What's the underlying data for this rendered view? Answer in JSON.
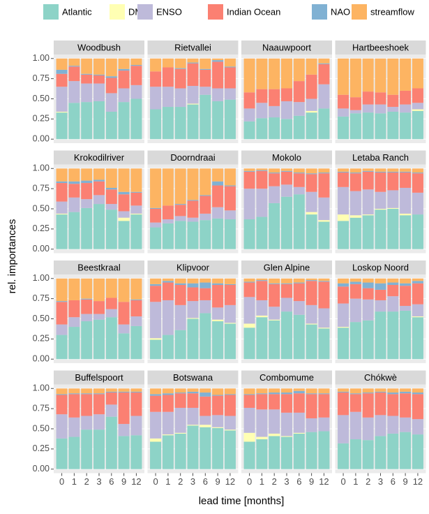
{
  "chart_data": {
    "type": "stacked-bar-facets",
    "xlabel": "lead time [months]",
    "ylabel": "rel. importances",
    "categories": [
      0,
      1,
      2,
      3,
      6,
      9,
      12
    ],
    "ylim": [
      -0.05,
      1.05
    ],
    "yticks": [
      {
        "value": 0,
        "label": "0.00"
      },
      {
        "value": 0.25,
        "label": "0.25"
      },
      {
        "value": 0.5,
        "label": "0.50"
      },
      {
        "value": 0.75,
        "label": "0.75"
      },
      {
        "value": 1,
        "label": "1.00"
      }
    ],
    "grid": true,
    "legend": "top",
    "facets": [
      "Woodbush",
      "Rietvallei",
      "Naauwpoort",
      "Hartbeeshoek",
      "Krokodilriver",
      "Doorndraai",
      "Mokolo",
      "Letaba Ranch",
      "Beestkraal",
      "Klipvoor",
      "Glen Alpine",
      "Loskop Noord",
      "Buffelspoort",
      "Botswana",
      "Combomume",
      "Chókwè"
    ],
    "series": [
      {
        "name": "Atlantic",
        "color": "#8dd3c7",
        "values": [
          [
            0.33,
            0.45,
            0.46,
            0.47,
            0.34,
            0.46,
            0.5
          ],
          [
            0.37,
            0.4,
            0.4,
            0.43,
            0.55,
            0.47,
            0.49
          ],
          [
            0.22,
            0.26,
            0.27,
            0.25,
            0.29,
            0.33,
            0.38
          ],
          [
            0.28,
            0.32,
            0.33,
            0.32,
            0.34,
            0.33,
            0.35
          ],
          [
            0.43,
            0.46,
            0.51,
            0.56,
            0.49,
            0.35,
            0.43
          ],
          [
            0.27,
            0.32,
            0.35,
            0.34,
            0.36,
            0.38,
            0.37
          ],
          [
            0.37,
            0.4,
            0.57,
            0.65,
            0.68,
            0.43,
            0.34
          ],
          [
            0.35,
            0.39,
            0.42,
            0.49,
            0.5,
            0.42,
            0.43
          ],
          [
            0.3,
            0.4,
            0.47,
            0.49,
            0.52,
            0.32,
            0.41
          ],
          [
            0.24,
            0.3,
            0.36,
            0.5,
            0.57,
            0.47,
            0.44
          ],
          [
            0.39,
            0.52,
            0.48,
            0.59,
            0.55,
            0.43,
            0.38
          ],
          [
            0.39,
            0.46,
            0.48,
            0.59,
            0.59,
            0.6,
            0.52
          ],
          [
            0.38,
            0.4,
            0.49,
            0.49,
            0.65,
            0.41,
            0.42
          ],
          [
            0.34,
            0.42,
            0.44,
            0.54,
            0.52,
            0.51,
            0.48
          ],
          [
            0.34,
            0.37,
            0.41,
            0.4,
            0.44,
            0.46,
            0.47
          ],
          [
            0.32,
            0.37,
            0.36,
            0.41,
            0.44,
            0.46,
            0.43
          ]
        ]
      },
      {
        "name": "DMI",
        "color": "#ffffb3",
        "values": [
          [
            0.01,
            0,
            0,
            0,
            0,
            0,
            0
          ],
          [
            0,
            0,
            0,
            0.01,
            0,
            0,
            0
          ],
          [
            0,
            0,
            0,
            0,
            0,
            0.02,
            0
          ],
          [
            0,
            0,
            0,
            0,
            0,
            0,
            0.02
          ],
          [
            0.01,
            0,
            0,
            0,
            0,
            0.04,
            0.01
          ],
          [
            0,
            0,
            0,
            0,
            0,
            0,
            0
          ],
          [
            0,
            0,
            0,
            0,
            0,
            0.03,
            0.02
          ],
          [
            0.08,
            0.03,
            0.01,
            0.01,
            0.01,
            0.02,
            0
          ],
          [
            0,
            0,
            0,
            0,
            0,
            0,
            0
          ],
          [
            0.02,
            0,
            0,
            0.01,
            0,
            0.02,
            0.01
          ],
          [
            0.05,
            0.02,
            0.01,
            0,
            0,
            0.01,
            0.01
          ],
          [
            0.01,
            0,
            0,
            0,
            0,
            0,
            0.01
          ],
          [
            0,
            0,
            0,
            0,
            0,
            0,
            0
          ],
          [
            0.04,
            0.01,
            0.01,
            0.01,
            0.03,
            0.01,
            0.01
          ],
          [
            0.11,
            0.03,
            0.03,
            0.01,
            0.01,
            0,
            0
          ],
          [
            0,
            0,
            0,
            0,
            0,
            0,
            0
          ]
        ]
      },
      {
        "name": "ENSO",
        "color": "#bebada",
        "values": [
          [
            0.31,
            0.27,
            0.23,
            0.22,
            0.23,
            0.17,
            0.17
          ],
          [
            0.28,
            0.25,
            0.23,
            0.22,
            0.1,
            0.16,
            0.14
          ],
          [
            0.16,
            0.19,
            0.14,
            0.22,
            0.17,
            0.15,
            0.3
          ],
          [
            0.1,
            0.04,
            0.1,
            0.11,
            0.06,
            0.1,
            0.08
          ],
          [
            0.15,
            0.18,
            0.11,
            0.11,
            0.07,
            0.08,
            0.1
          ],
          [
            0.06,
            0.05,
            0.06,
            0.05,
            0.08,
            0.14,
            0.11
          ],
          [
            0.38,
            0.35,
            0.21,
            0.15,
            0.09,
            0.25,
            0.28
          ],
          [
            0.34,
            0.3,
            0.31,
            0.21,
            0.22,
            0.32,
            0.27
          ],
          [
            0.13,
            0.12,
            0.09,
            0.07,
            0.1,
            0.11,
            0.12
          ],
          [
            0.45,
            0.43,
            0.31,
            0.21,
            0.16,
            0.15,
            0.22
          ],
          [
            0.33,
            0.19,
            0.16,
            0.17,
            0.17,
            0.23,
            0.24
          ],
          [
            0.29,
            0.29,
            0.26,
            0.14,
            0.19,
            0.06,
            0.15
          ],
          [
            0.3,
            0.24,
            0.17,
            0.19,
            0.15,
            0.15,
            0.24
          ],
          [
            0.33,
            0.28,
            0.31,
            0.21,
            0.11,
            0.15,
            0.17
          ],
          [
            0.31,
            0.34,
            0.3,
            0.29,
            0.25,
            0.17,
            0.17
          ],
          [
            0.35,
            0.34,
            0.28,
            0.26,
            0.22,
            0.18,
            0.19
          ]
        ]
      },
      {
        "name": "Indian Ocean",
        "color": "#fb8072",
        "values": [
          [
            0.16,
            0.18,
            0.11,
            0.1,
            0.19,
            0.22,
            0.24
          ],
          [
            0.19,
            0.24,
            0.24,
            0.28,
            0.21,
            0.33,
            0.26
          ],
          [
            0.2,
            0.17,
            0.21,
            0.16,
            0.26,
            0.3,
            0.25
          ],
          [
            0.17,
            0.16,
            0.16,
            0.15,
            0.15,
            0.17,
            0.18
          ],
          [
            0.23,
            0.17,
            0.2,
            0.17,
            0.18,
            0.21,
            0.16
          ],
          [
            0.17,
            0.17,
            0.14,
            0.21,
            0.22,
            0.27,
            0.3
          ],
          [
            0.21,
            0.22,
            0.16,
            0.16,
            0.17,
            0.22,
            0.3
          ],
          [
            0.18,
            0.22,
            0.22,
            0.24,
            0.22,
            0.19,
            0.24
          ],
          [
            0.28,
            0.21,
            0.18,
            0.16,
            0.14,
            0.28,
            0.2
          ],
          [
            0.2,
            0.22,
            0.25,
            0.17,
            0.15,
            0.28,
            0.25
          ],
          [
            0.18,
            0.24,
            0.28,
            0.17,
            0.22,
            0.3,
            0.33
          ],
          [
            0.21,
            0.18,
            0.14,
            0.13,
            0.14,
            0.25,
            0.26
          ],
          [
            0.24,
            0.29,
            0.27,
            0.25,
            0.15,
            0.39,
            0.29
          ],
          [
            0.2,
            0.21,
            0.18,
            0.18,
            0.24,
            0.24,
            0.26
          ],
          [
            0.16,
            0.19,
            0.19,
            0.23,
            0.24,
            0.3,
            0.29
          ],
          [
            0.28,
            0.22,
            0.3,
            0.28,
            0.27,
            0.3,
            0.31
          ]
        ]
      },
      {
        "name": "NAO",
        "color": "#80b1d3",
        "values": [
          [
            0.05,
            0.01,
            0.01,
            0.01,
            0.02,
            0.02,
            0.01
          ],
          [
            0,
            0,
            0.01,
            0.01,
            0.01,
            0.02,
            0.01
          ],
          [
            0,
            0,
            0,
            0,
            0,
            0,
            0.01
          ],
          [
            0,
            0,
            0,
            0,
            0,
            0,
            0
          ],
          [
            0.02,
            0.03,
            0.03,
            0.02,
            0.02,
            0.03,
            0.01
          ],
          [
            0.01,
            0,
            0.01,
            0.01,
            0.01,
            0.05,
            0.01
          ],
          [
            0.01,
            0.01,
            0.01,
            0.01,
            0.01,
            0.01,
            0.01
          ],
          [
            0.01,
            0.01,
            0.01,
            0.01,
            0.01,
            0.01,
            0.01
          ],
          [
            0.01,
            0,
            0.01,
            0,
            0,
            0,
            0.01
          ],
          [
            0.02,
            0.02,
            0.02,
            0.05,
            0.07,
            0.02,
            0.01
          ],
          [
            0.01,
            0.01,
            0.01,
            0.01,
            0.01,
            0.01,
            0.01
          ],
          [
            0.04,
            0.03,
            0.07,
            0.08,
            0.03,
            0.03,
            0.03
          ],
          [
            0.01,
            0.01,
            0.01,
            0.01,
            0.01,
            0.01,
            0.01
          ],
          [
            0.02,
            0.02,
            0.01,
            0.02,
            0.05,
            0.01,
            0.01
          ],
          [
            0.01,
            0.01,
            0.02,
            0.02,
            0.03,
            0.01,
            0.01
          ],
          [
            0.01,
            0.01,
            0.01,
            0.01,
            0.02,
            0.02,
            0.02
          ]
        ]
      },
      {
        "name": "streamflow",
        "color": "#fdb462",
        "values": [
          [
            0.14,
            0.09,
            0.19,
            0.2,
            0.22,
            0.13,
            0.08
          ],
          [
            0.16,
            0.11,
            0.12,
            0.05,
            0.13,
            0.02,
            0.1
          ],
          [
            0.42,
            0.38,
            0.38,
            0.37,
            0.28,
            0.2,
            0.06
          ],
          [
            0.45,
            0.48,
            0.41,
            0.42,
            0.45,
            0.4,
            0.37
          ],
          [
            0.16,
            0.16,
            0.15,
            0.14,
            0.24,
            0.29,
            0.29
          ],
          [
            0.49,
            0.46,
            0.44,
            0.39,
            0.33,
            0.16,
            0.21
          ],
          [
            0.03,
            0.02,
            0.05,
            0.03,
            0.05,
            0.06,
            0.05
          ],
          [
            0.04,
            0.05,
            0.03,
            0.04,
            0.04,
            0.04,
            0.05
          ],
          [
            0.28,
            0.27,
            0.25,
            0.28,
            0.24,
            0.29,
            0.26
          ],
          [
            0.07,
            0.03,
            0.06,
            0.06,
            0.05,
            0.06,
            0.07
          ],
          [
            0.04,
            0.02,
            0.06,
            0.06,
            0.05,
            0.02,
            0.03
          ],
          [
            0.06,
            0.04,
            0.05,
            0.06,
            0.05,
            0.06,
            0.03
          ],
          [
            0.07,
            0.06,
            0.06,
            0.06,
            0.04,
            0.04,
            0.04
          ],
          [
            0.07,
            0.06,
            0.05,
            0.04,
            0.05,
            0.08,
            0.07
          ],
          [
            0.07,
            0.06,
            0.05,
            0.05,
            0.03,
            0.06,
            0.06
          ],
          [
            0.04,
            0.06,
            0.05,
            0.04,
            0.05,
            0.04,
            0.05
          ]
        ]
      }
    ]
  }
}
